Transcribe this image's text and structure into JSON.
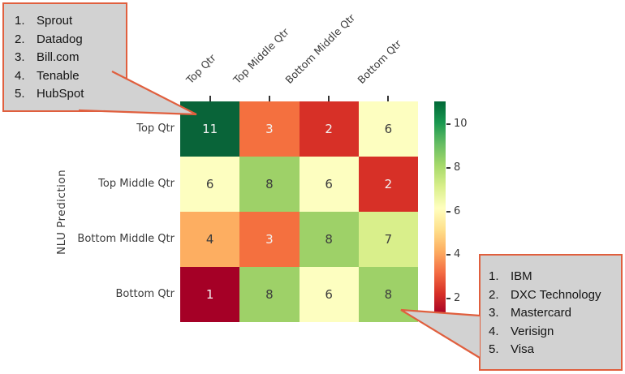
{
  "chart_data": {
    "type": "heatmap",
    "title": "",
    "xlabel": "",
    "ylabel": "NLU Prediction",
    "x_categories": [
      "Top Qtr",
      "Top Middle Qtr",
      "Bottom Middle Qtr",
      "Bottom Qtr"
    ],
    "y_categories": [
      "Top Qtr",
      "Top Middle Qtr",
      "Bottom Middle Qtr",
      "Bottom Qtr"
    ],
    "values": [
      [
        11,
        3,
        2,
        6
      ],
      [
        6,
        8,
        6,
        2
      ],
      [
        4,
        3,
        8,
        7
      ],
      [
        1,
        8,
        6,
        8
      ]
    ],
    "colormap": "RdYlGn",
    "value_colors": {
      "1": "#a50026",
      "2": "#d73027",
      "3": "#f4703f",
      "4": "#fdae61",
      "6": "#fdfec0",
      "7": "#d9ef8b",
      "8": "#9ed168",
      "11": "#096439"
    },
    "light_text_values": [
      1,
      2,
      3,
      11
    ],
    "dark_text_color": "#3d3d3d",
    "light_text_color": "#f2f2f2",
    "colorbar": {
      "ticks": [
        2,
        4,
        6,
        8,
        10
      ],
      "vmin": 1.25,
      "vmax": 11.05,
      "gradient_top_to_bottom": [
        "#006837",
        "#1a9850",
        "#66bd63",
        "#a6d96a",
        "#d9ef8b",
        "#ffffbf",
        "#fee08b",
        "#fdae61",
        "#f46d43",
        "#d73027",
        "#a50026"
      ]
    },
    "legend_position": "right",
    "grid": false
  },
  "callouts": {
    "top_left": {
      "items": [
        {
          "num": "1.",
          "label": "Sprout"
        },
        {
          "num": "2.",
          "label": "Datadog"
        },
        {
          "num": "3.",
          "label": "Bill.com"
        },
        {
          "num": "4.",
          "label": "Tenable"
        },
        {
          "num": "5.",
          "label": "HubSpot"
        }
      ]
    },
    "bottom_right": {
      "items": [
        {
          "num": "1.",
          "label": "IBM"
        },
        {
          "num": "2.",
          "label": "DXC Technology"
        },
        {
          "num": "3.",
          "label": "Mastercard"
        },
        {
          "num": "4.",
          "label": "Verisign"
        },
        {
          "num": "5.",
          "label": "Visa"
        }
      ]
    }
  },
  "style": {
    "callout_fill": "#d2d2d2",
    "callout_border": "#e05f3e",
    "axis_text_color": "#3a3a3a",
    "background": "#ffffff"
  }
}
